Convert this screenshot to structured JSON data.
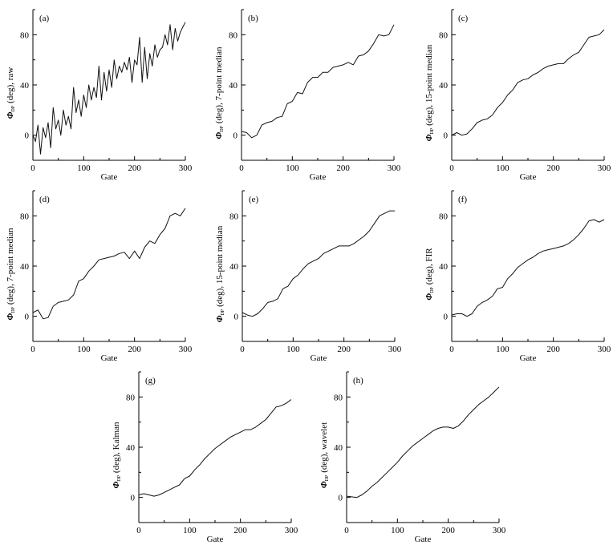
{
  "chart_data": [
    {
      "type": "line",
      "panel": "(a)",
      "ylabel_symbol": "Φ",
      "ylabel_sub": "DP",
      "ylabel_text": "(deg),  raw",
      "xlabel": "Gate",
      "xlim": [
        0,
        300
      ],
      "ylim": [
        -20,
        100
      ],
      "xticks": [
        "0",
        "100",
        "200",
        "300"
      ],
      "yticks": [
        "0",
        "40",
        "80"
      ],
      "x": [
        0,
        5,
        10,
        15,
        20,
        25,
        30,
        35,
        40,
        45,
        50,
        55,
        60,
        65,
        70,
        75,
        80,
        85,
        90,
        95,
        100,
        105,
        110,
        115,
        120,
        125,
        130,
        135,
        140,
        145,
        150,
        155,
        160,
        165,
        170,
        175,
        180,
        185,
        190,
        195,
        200,
        205,
        210,
        215,
        220,
        225,
        230,
        235,
        240,
        245,
        250,
        255,
        260,
        265,
        270,
        275,
        280,
        285,
        290,
        295,
        300
      ],
      "y": [
        0,
        -5,
        8,
        -15,
        6,
        -2,
        10,
        -10,
        22,
        5,
        12,
        0,
        20,
        8,
        15,
        5,
        38,
        18,
        28,
        15,
        32,
        22,
        40,
        28,
        38,
        30,
        55,
        28,
        50,
        35,
        52,
        38,
        60,
        45,
        55,
        50,
        58,
        52,
        62,
        42,
        60,
        56,
        78,
        42,
        70,
        45,
        65,
        55,
        72,
        62,
        68,
        70,
        80,
        72,
        88,
        68,
        85,
        75,
        82,
        86,
        90
      ]
    },
    {
      "type": "line",
      "panel": "(b)",
      "ylabel_symbol": "Φ",
      "ylabel_sub": "DP",
      "ylabel_text": "(deg),  7-point  median",
      "xlabel": "Gate",
      "xlim": [
        0,
        300
      ],
      "ylim": [
        -20,
        100
      ],
      "xticks": [
        "0",
        "100",
        "200",
        "300"
      ],
      "yticks": [
        "0",
        "40",
        "80"
      ],
      "x": [
        0,
        10,
        20,
        30,
        40,
        50,
        60,
        70,
        80,
        90,
        100,
        110,
        120,
        130,
        140,
        150,
        160,
        170,
        180,
        190,
        200,
        210,
        220,
        230,
        240,
        250,
        260,
        270,
        280,
        290,
        300
      ],
      "y": [
        3,
        2,
        -2,
        0,
        8,
        10,
        11,
        14,
        15,
        25,
        27,
        34,
        33,
        42,
        46,
        46,
        50,
        50,
        54,
        55,
        56,
        58,
        56,
        63,
        64,
        67,
        73,
        80,
        79,
        80,
        88
      ]
    },
    {
      "type": "line",
      "panel": "(c)",
      "ylabel_symbol": "Φ",
      "ylabel_sub": "DP",
      "ylabel_text": "(deg),  15-point  median",
      "xlabel": "Gate",
      "xlim": [
        0,
        300
      ],
      "ylim": [
        -20,
        100
      ],
      "xticks": [
        "0",
        "100",
        "200",
        "300"
      ],
      "yticks": [
        "0",
        "40",
        "80"
      ],
      "x": [
        0,
        10,
        20,
        30,
        40,
        50,
        60,
        70,
        80,
        90,
        100,
        110,
        120,
        130,
        140,
        150,
        160,
        170,
        180,
        190,
        200,
        210,
        220,
        230,
        240,
        250,
        260,
        270,
        280,
        290,
        300
      ],
      "y": [
        0,
        2,
        0,
        1,
        5,
        10,
        12,
        13,
        16,
        22,
        26,
        32,
        36,
        42,
        44,
        45,
        48,
        50,
        53,
        55,
        56,
        57,
        57,
        61,
        64,
        66,
        72,
        78,
        79,
        80,
        84
      ]
    },
    {
      "type": "line",
      "panel": "(d)",
      "ylabel_symbol": "Φ",
      "ylabel_sub": "DP",
      "ylabel_text": "(deg),  7-point  median",
      "xlabel": "Gate",
      "xlim": [
        0,
        300
      ],
      "ylim": [
        -20,
        100
      ],
      "xticks": [
        "0",
        "100",
        "200",
        "300"
      ],
      "yticks": [
        "0",
        "40",
        "80"
      ],
      "x": [
        0,
        10,
        20,
        30,
        40,
        50,
        60,
        70,
        80,
        90,
        100,
        110,
        120,
        130,
        140,
        150,
        160,
        170,
        180,
        190,
        200,
        210,
        220,
        230,
        240,
        250,
        260,
        270,
        280,
        290,
        300
      ],
      "y": [
        3,
        5,
        -2,
        -1,
        8,
        11,
        12,
        13,
        17,
        28,
        30,
        36,
        40,
        45,
        46,
        47,
        48,
        50,
        51,
        46,
        52,
        46,
        55,
        60,
        58,
        65,
        70,
        80,
        82,
        80,
        86
      ]
    },
    {
      "type": "line",
      "panel": "(e)",
      "ylabel_symbol": "Φ",
      "ylabel_sub": "DP",
      "ylabel_text": "(deg),  15-point  median",
      "xlabel": "Gate",
      "xlim": [
        0,
        300
      ],
      "ylim": [
        -20,
        100
      ],
      "xticks": [
        "0",
        "100",
        "200",
        "300"
      ],
      "yticks": [
        "0",
        "40",
        "80"
      ],
      "x": [
        0,
        10,
        20,
        30,
        40,
        50,
        60,
        70,
        80,
        90,
        100,
        110,
        120,
        130,
        140,
        150,
        160,
        170,
        180,
        190,
        200,
        210,
        220,
        230,
        240,
        250,
        260,
        270,
        280,
        290,
        300
      ],
      "y": [
        3,
        1,
        0,
        2,
        6,
        11,
        12,
        14,
        22,
        24,
        30,
        33,
        38,
        42,
        44,
        46,
        50,
        52,
        54,
        56,
        56,
        56,
        58,
        61,
        64,
        68,
        74,
        80,
        82,
        84,
        84
      ]
    },
    {
      "type": "line",
      "panel": "(f)",
      "ylabel_symbol": "Φ",
      "ylabel_sub": "DP",
      "ylabel_text": "(deg),  FIR",
      "xlabel": "Gate",
      "xlim": [
        0,
        300
      ],
      "ylim": [
        -20,
        100
      ],
      "xticks": [
        "0",
        "100",
        "200",
        "300"
      ],
      "yticks": [
        "0",
        "40",
        "80"
      ],
      "x": [
        0,
        10,
        20,
        30,
        40,
        50,
        60,
        70,
        80,
        90,
        100,
        110,
        120,
        130,
        140,
        150,
        160,
        170,
        180,
        190,
        200,
        210,
        220,
        230,
        240,
        250,
        260,
        270,
        280,
        290,
        300
      ],
      "y": [
        1,
        2,
        2,
        0,
        2,
        8,
        11,
        13,
        16,
        22,
        23,
        30,
        34,
        39,
        42,
        45,
        47,
        50,
        52,
        53,
        54,
        55,
        56,
        58,
        61,
        65,
        70,
        76,
        77,
        75,
        77
      ]
    },
    {
      "type": "line",
      "panel": "(g)",
      "ylabel_symbol": "Φ",
      "ylabel_sub": "DP",
      "ylabel_text": "(deg),  Kalman",
      "xlabel": "Gate",
      "xlim": [
        0,
        300
      ],
      "ylim": [
        -20,
        100
      ],
      "xticks": [
        "0",
        "100",
        "200",
        "300"
      ],
      "yticks": [
        "0",
        "40",
        "80"
      ],
      "x": [
        0,
        10,
        20,
        30,
        40,
        50,
        60,
        70,
        80,
        90,
        100,
        110,
        120,
        130,
        140,
        150,
        160,
        170,
        180,
        190,
        200,
        210,
        220,
        230,
        240,
        250,
        260,
        270,
        280,
        290,
        300
      ],
      "y": [
        2,
        3,
        2,
        1,
        2,
        4,
        6,
        8,
        10,
        15,
        17,
        22,
        26,
        31,
        35,
        39,
        42,
        45,
        48,
        50,
        52,
        54,
        54,
        56,
        59,
        62,
        67,
        72,
        73,
        75,
        78
      ]
    },
    {
      "type": "line",
      "panel": "(h)",
      "ylabel_symbol": "Φ",
      "ylabel_sub": "DP",
      "ylabel_text": "(deg),  wavelet",
      "xlabel": "Gate",
      "xlim": [
        0,
        300
      ],
      "ylim": [
        -20,
        100
      ],
      "xticks": [
        "0",
        "100",
        "200",
        "300"
      ],
      "yticks": [
        "0",
        "40",
        "80"
      ],
      "x": [
        0,
        10,
        20,
        30,
        40,
        50,
        60,
        70,
        80,
        90,
        100,
        110,
        120,
        130,
        140,
        150,
        160,
        170,
        180,
        190,
        200,
        210,
        220,
        230,
        240,
        250,
        260,
        270,
        280,
        290,
        300
      ],
      "y": [
        1,
        0.5,
        0,
        2,
        5,
        9,
        12,
        16,
        20,
        24,
        28,
        33,
        37,
        41,
        44,
        47,
        50,
        53,
        55,
        56,
        56,
        55,
        57,
        61,
        66,
        70,
        74,
        77,
        80,
        84,
        88
      ]
    }
  ]
}
